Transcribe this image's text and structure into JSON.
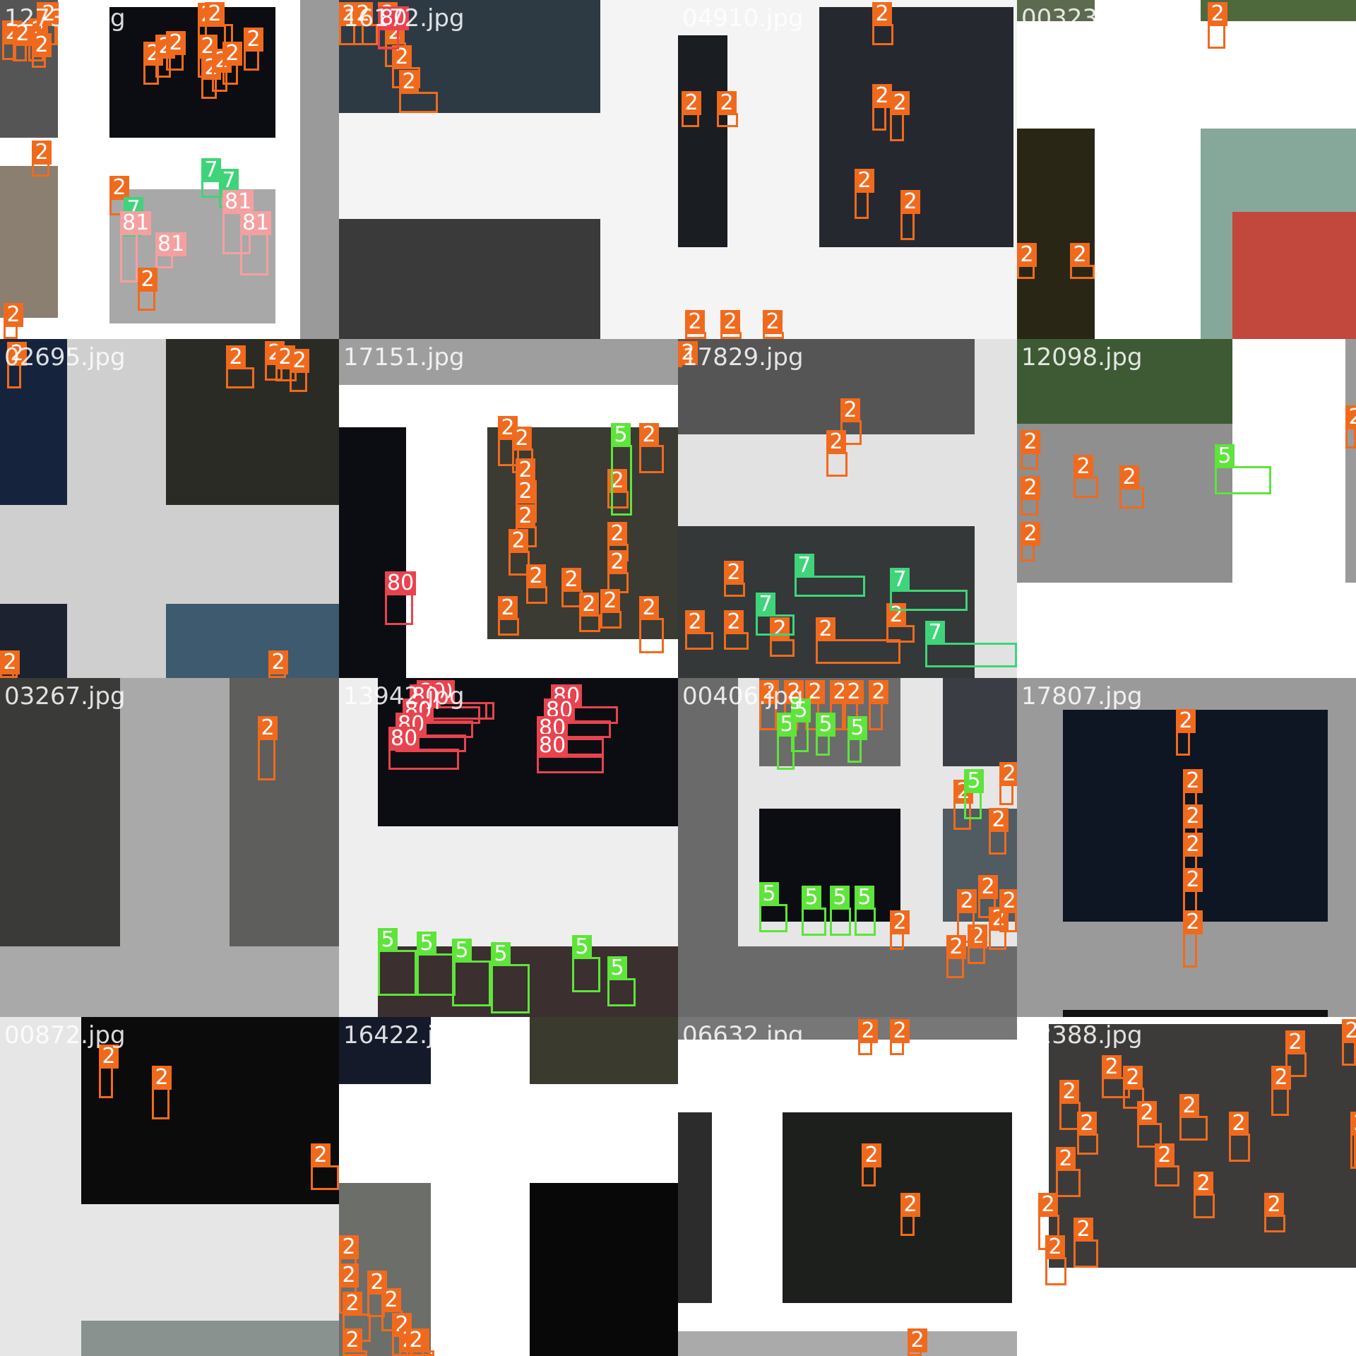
{
  "mosaic": {
    "title": "",
    "tiles": [
      {
        "id": "t1",
        "filename": "12734.jpg",
        "bg": "#ffffff"
      },
      {
        "id": "t2",
        "filename": "16172.jpg",
        "bg": "#f4f4f4"
      },
      {
        "id": "t3",
        "filename": "04910.jpg",
        "bg": "#f4f4f4"
      },
      {
        "id": "t4",
        "filename": "00323.jpg",
        "bg": "#ffffff"
      },
      {
        "id": "t5",
        "filename": "02695.jpg",
        "bg": "#cfcfcf"
      },
      {
        "id": "t6",
        "filename": "17151.jpg",
        "bg": "#ffffff"
      },
      {
        "id": "t7",
        "filename": "17829.jpg",
        "bg": "#e2e2e2"
      },
      {
        "id": "t8",
        "filename": "12098.jpg",
        "bg": "#ffffff"
      },
      {
        "id": "t9",
        "filename": "03267.jpg",
        "bg": "#a9a9a9"
      },
      {
        "id": "t10",
        "filename": "13942.jpg",
        "bg": "#eeeeee"
      },
      {
        "id": "t11",
        "filename": "00406.jpg",
        "bg": "#6a6a6a"
      },
      {
        "id": "t12",
        "filename": "17807.jpg",
        "bg": "#9a9a9a"
      },
      {
        "id": "t13",
        "filename": "00872.jpg",
        "bg": "#e6e6e6"
      },
      {
        "id": "t14",
        "filename": "16422.jpg",
        "bg": "#ffffff"
      },
      {
        "id": "t15",
        "filename": "06632.jpg",
        "bg": "#ffffff"
      },
      {
        "id": "t16",
        "filename": "12388.jpg",
        "bg": "#ffffff"
      }
    ]
  },
  "class_colors": {
    "2": "#f06a1e",
    "5": "#5ee43a",
    "7": "#3fd47a",
    "80": "#e8434e",
    "81": "#f4a0a0"
  },
  "detections": {
    "t1": [
      "2",
      "2",
      "2",
      "2",
      "2",
      "2",
      "2",
      "2",
      "2",
      "2",
      "2",
      "2",
      "2",
      "2",
      "2",
      "2",
      "2",
      "2",
      "7",
      "7",
      "7",
      "81",
      "81",
      "81",
      "81",
      "2",
      "2"
    ],
    "t2": [
      "2",
      "2",
      "2",
      "2",
      "2",
      "2",
      "80"
    ],
    "t3": [
      "2",
      "2",
      "2",
      "2",
      "2",
      "2",
      "2",
      "2",
      "2",
      "2"
    ],
    "t4": [
      "2",
      "2",
      "2"
    ],
    "t5": [
      "2",
      "2",
      "2",
      "2",
      "2",
      "2",
      "2",
      "2"
    ],
    "t6": [
      "2",
      "2",
      "2",
      "2",
      "2",
      "2",
      "2",
      "2",
      "2",
      "2",
      "2",
      "2",
      "2",
      "2",
      "2",
      "5",
      "2",
      "80"
    ],
    "t7": [
      "2",
      "2",
      "2",
      "2",
      "2",
      "2",
      "2",
      "7",
      "7",
      "7",
      "7",
      "2",
      "2"
    ],
    "t8": [
      "2",
      "2",
      "2",
      "2",
      "2",
      "5",
      "2"
    ],
    "t9": [
      "2"
    ],
    "t10": [
      "80",
      "80",
      "80",
      "80",
      "80",
      "80",
      "80",
      "80",
      "80",
      "80",
      "5",
      "5",
      "5",
      "5",
      "5",
      "5"
    ],
    "t11": [
      "2",
      "2",
      "2",
      "2",
      "2",
      "2",
      "5",
      "5",
      "5",
      "5",
      "5",
      "5",
      "5",
      "5",
      "2",
      "2",
      "5",
      "2",
      "2",
      "2",
      "2",
      "2",
      "2",
      "2",
      "2"
    ],
    "t12": [
      "2",
      "2",
      "2",
      "2",
      "2",
      "2"
    ],
    "t13": [
      "2",
      "2",
      "2"
    ],
    "t14": [
      "2",
      "2",
      "2",
      "2",
      "2",
      "2",
      "2",
      "2",
      "2",
      "2"
    ],
    "t15": [
      "2",
      "2",
      "2",
      "2",
      "2"
    ],
    "t16": [
      "2",
      "2",
      "2",
      "2",
      "2",
      "2",
      "2",
      "2",
      "2",
      "2",
      "2",
      "2",
      "2",
      "2",
      "2",
      "2",
      "2",
      "2"
    ]
  }
}
